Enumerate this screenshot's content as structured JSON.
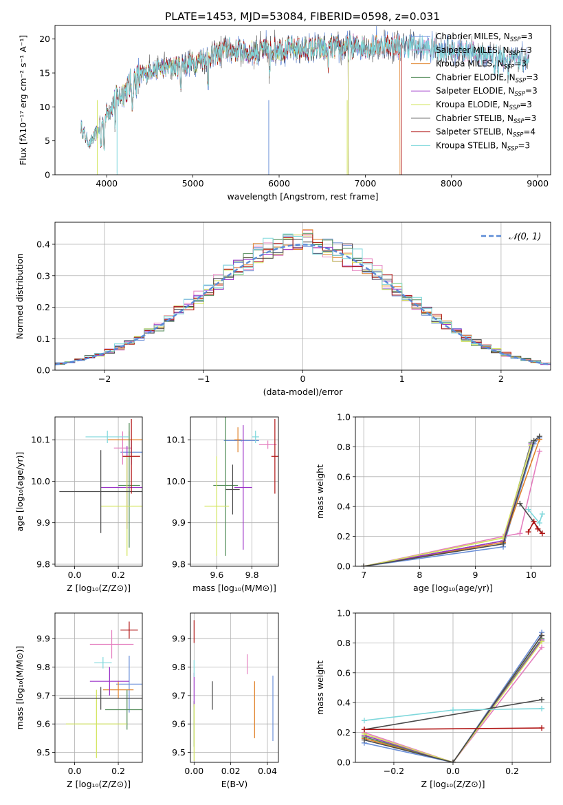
{
  "figure_title": "PLATE=1453, MJD=53084, FIBERID=0598, z=0.031",
  "colors": {
    "Chabrier MILES": "#6a8fd8",
    "Salpeter MILES": "#e57fbf",
    "Kroupa MILES": "#e0822a",
    "Chabrier ELODIE": "#4f8a55",
    "Salpeter ELODIE": "#9c33c8",
    "Kroupa ELODIE": "#d2e45a",
    "Chabrier STELIB": "#4a4a4a",
    "Salpeter STELIB": "#b01414",
    "Kroupa STELIB": "#7fd8dc"
  },
  "chart_data": [
    {
      "id": "spectrum",
      "type": "line",
      "xlabel": "wavelength [Angstrom, rest frame]",
      "ylabel": "Flux [fλ10⁻¹⁷ erg cm⁻² s⁻¹ A⁻¹]",
      "xlim": [
        3400,
        9150
      ],
      "ylim": [
        0,
        22
      ],
      "xticks": [
        4000,
        5000,
        6000,
        7000,
        8000,
        9000
      ],
      "yticks": [
        0,
        5,
        10,
        15,
        20
      ],
      "legend": "top-right",
      "series": [
        {
          "name": "Chabrier MILES, N<sub>SSP</sub>=3",
          "end": 8900
        },
        {
          "name": "Salpeter MILES, N<sub>SSP</sub>=3",
          "end": 8900
        },
        {
          "name": "Kroupa MILES, N<sub>SSP</sub>=3",
          "end": 7400
        },
        {
          "name": "Chabrier ELODIE, N<sub>SSP</sub>=3",
          "end": 6800
        },
        {
          "name": "Salpeter ELODIE, N<sub>SSP</sub>=3",
          "end": 6800
        },
        {
          "name": "Kroupa ELODIE, N<sub>SSP</sub>=3",
          "end": 6800
        },
        {
          "name": "Chabrier STELIB, N<sub>SSP</sub>=3",
          "end": 8900
        },
        {
          "name": "Salpeter STELIB, N<sub>SSP</sub>=4",
          "end": 7420
        },
        {
          "name": "Kroupa STELIB, N<sub>SSP</sub>=3",
          "end": 8900
        }
      ],
      "continuum": [
        [
          3700,
          7
        ],
        [
          3800,
          4.5
        ],
        [
          3900,
          6.5
        ],
        [
          4000,
          9
        ],
        [
          4100,
          11
        ],
        [
          4300,
          13.5
        ],
        [
          4500,
          15.5
        ],
        [
          4800,
          16
        ],
        [
          5000,
          16.5
        ],
        [
          5200,
          17.5
        ],
        [
          5400,
          18.5
        ],
        [
          5600,
          18
        ],
        [
          6000,
          18.5
        ],
        [
          6500,
          18.5
        ],
        [
          7000,
          19
        ],
        [
          7500,
          19
        ],
        [
          8000,
          18.3
        ],
        [
          8500,
          17.5
        ],
        [
          8900,
          16.8
        ]
      ],
      "absorption_lines": [
        [
          3933,
          0.55
        ],
        [
          3968,
          0.5
        ],
        [
          4102,
          0.7
        ],
        [
          4300,
          0.8
        ],
        [
          4861,
          0.85
        ],
        [
          5175,
          0.75
        ],
        [
          5890,
          0.8
        ],
        [
          6563,
          0.9
        ],
        [
          8500,
          0.9
        ],
        [
          8542,
          0.88
        ],
        [
          8662,
          0.9
        ]
      ],
      "sky_lines": [
        [
          5577,
          0.65
        ],
        [
          6300,
          0.75
        ],
        [
          4950,
          0.85
        ],
        [
          7700,
          0.9
        ]
      ]
    },
    {
      "id": "residuals",
      "type": "histogram",
      "xlabel": "(data-model)/error",
      "ylabel": "Normed distribution",
      "xlim": [
        -2.5,
        2.5
      ],
      "ylim": [
        0,
        0.47
      ],
      "xticks": [
        -2,
        -1,
        0,
        1,
        2
      ],
      "yticks": [
        0.0,
        0.1,
        0.2,
        0.3,
        0.4
      ],
      "grid": true,
      "bin_width": 0.1,
      "legend": "top-right",
      "reference_curve": {
        "name": "𝒩(0, 1)",
        "type": "normal",
        "mean": 0,
        "sigma": 1,
        "color": "#5b8ad6"
      }
    },
    {
      "id": "age-vs-Z",
      "type": "scatter",
      "xlabel": "Z [log₁₀(Z/Z⊙)]",
      "ylabel": "age  [log₁₀(age/yr)]",
      "xlim": [
        -0.09,
        0.31
      ],
      "ylim": [
        9.795,
        10.155
      ],
      "xticks": [
        0.0,
        0.2
      ],
      "yticks": [
        9.8,
        9.9,
        10.0,
        10.1
      ],
      "grid": true,
      "points": [
        {
          "series": "Chabrier MILES",
          "x": 0.26,
          "y": 10.07,
          "xerr": 0.05,
          "yerr": 0.03
        },
        {
          "series": "Salpeter MILES",
          "x": 0.22,
          "y": 10.08,
          "xerr": 0.04,
          "yerr": 0.04
        },
        {
          "series": "Kroupa MILES",
          "x": 0.25,
          "y": 10.1,
          "xerr": 0.1,
          "yerr": 0.02
        },
        {
          "series": "Chabrier ELODIE",
          "x": 0.25,
          "y": 9.99,
          "xerr": 0.05,
          "yerr": 0.15
        },
        {
          "series": "Salpeter ELODIE",
          "x": 0.24,
          "y": 9.985,
          "xerr": 0.12,
          "yerr": 0.1
        },
        {
          "series": "Kroupa ELODIE",
          "x": 0.24,
          "y": 9.94,
          "xerr": 0.12,
          "yerr": 0.12
        },
        {
          "series": "Chabrier STELIB",
          "x": 0.12,
          "y": 9.975,
          "xerr": 0.19,
          "yerr": 0.1
        },
        {
          "series": "Salpeter STELIB",
          "x": 0.26,
          "y": 10.06,
          "xerr": 0.04,
          "yerr": 0.09
        },
        {
          "series": "Kroupa STELIB",
          "x": 0.15,
          "y": 10.107,
          "xerr": 0.1,
          "yerr": 0.015
        }
      ]
    },
    {
      "id": "age-vs-mass",
      "type": "scatter",
      "xlabel": "mass [log₁₀(M/M⊙)]",
      "ylabel": "",
      "xlim": [
        9.45,
        9.95
      ],
      "ylim": [
        9.795,
        10.155
      ],
      "xticks": [
        9.6,
        9.8
      ],
      "yticks": [
        9.8,
        9.9,
        10.0,
        10.1
      ],
      "grid": true,
      "points": [
        {
          "series": "Chabrier MILES",
          "x": 9.74,
          "y": 10.098,
          "xerr": 0.1,
          "yerr": 0.002
        },
        {
          "series": "Salpeter MILES",
          "x": 9.89,
          "y": 10.088,
          "xerr": 0.05,
          "yerr": 0.01
        },
        {
          "series": "Kroupa MILES",
          "x": 9.72,
          "y": 10.1,
          "xerr": 0.02,
          "yerr": 0.03
        },
        {
          "series": "Chabrier ELODIE",
          "x": 9.65,
          "y": 9.99,
          "xerr": 0.07,
          "yerr": 0.17
        },
        {
          "series": "Salpeter ELODIE",
          "x": 9.75,
          "y": 9.985,
          "xerr": 0.05,
          "yerr": 0.15
        },
        {
          "series": "Kroupa ELODIE",
          "x": 9.6,
          "y": 9.94,
          "xerr": 0.07,
          "yerr": 0.12
        },
        {
          "series": "Chabrier STELIB",
          "x": 9.69,
          "y": 9.98,
          "xerr": 0.04,
          "yerr": 0.06
        },
        {
          "series": "Salpeter STELIB",
          "x": 9.93,
          "y": 10.06,
          "xerr": 0.02,
          "yerr": 0.09
        },
        {
          "series": "Kroupa STELIB",
          "x": 9.82,
          "y": 10.107,
          "xerr": 0.02,
          "yerr": 0.015
        }
      ]
    },
    {
      "id": "mass-weight-vs-age",
      "type": "line",
      "xlabel": "age  [log₁₀(age/yr)]",
      "ylabel": "mass weight",
      "xlim": [
        6.85,
        10.35
      ],
      "ylim": [
        0,
        1
      ],
      "xticks": [
        7,
        8,
        9,
        10
      ],
      "yticks": [
        0.0,
        0.2,
        0.4,
        0.6,
        0.8,
        1.0
      ],
      "grid": true,
      "series": [
        {
          "name": "Chabrier MILES",
          "x": [
            7.0,
            9.5,
            10.05,
            10.15
          ],
          "y": [
            0.0,
            0.13,
            0.82,
            0.86
          ]
        },
        {
          "name": "Salpeter MILES",
          "x": [
            7.0,
            9.5,
            9.8,
            10.15
          ],
          "y": [
            0.0,
            0.2,
            0.22,
            0.77
          ]
        },
        {
          "name": "Kroupa MILES",
          "x": [
            7.0,
            9.5,
            10.15
          ],
          "y": [
            0.0,
            0.16,
            0.85
          ]
        },
        {
          "name": "Chabrier ELODIE",
          "x": [
            7.0,
            9.5,
            10.0
          ],
          "y": [
            0.0,
            0.17,
            0.83
          ]
        },
        {
          "name": "Salpeter ELODIE",
          "x": [
            7.0,
            9.5,
            10.0
          ],
          "y": [
            0.0,
            0.17,
            0.82
          ]
        },
        {
          "name": "Kroupa ELODIE",
          "x": [
            7.0,
            9.5,
            10.0
          ],
          "y": [
            0.0,
            0.19,
            0.81
          ]
        },
        {
          "name": "Chabrier STELIB",
          "x": [
            7.0,
            9.5,
            10.05,
            10.15
          ],
          "y": [
            0.0,
            0.15,
            0.84,
            0.87
          ]
        },
        {
          "name": "Chabrier STELIB",
          "x": [
            9.8,
            10.2
          ],
          "y": [
            0.42,
            0.22
          ]
        },
        {
          "name": "Salpeter STELIB",
          "x": [
            9.95,
            10.05,
            10.12,
            10.2
          ],
          "y": [
            0.23,
            0.3,
            0.25,
            0.22
          ]
        },
        {
          "name": "Kroupa STELIB",
          "x": [
            9.95,
            10.15,
            10.2
          ],
          "y": [
            0.38,
            0.29,
            0.35
          ]
        }
      ]
    },
    {
      "id": "mass-vs-Z",
      "type": "scatter",
      "xlabel": "Z [log₁₀(Z/Z⊙)]",
      "ylabel": "mass [log₁₀(M/M⊙)]",
      "xlim": [
        -0.09,
        0.31
      ],
      "ylim": [
        9.465,
        9.99
      ],
      "xticks": [
        0.0,
        0.2
      ],
      "yticks": [
        9.5,
        9.6,
        9.7,
        9.8,
        9.9
      ],
      "grid": true,
      "points": [
        {
          "series": "Chabrier MILES",
          "x": 0.25,
          "y": 9.74,
          "xerr": 0.06,
          "yerr": 0.1
        },
        {
          "series": "Salpeter MILES",
          "x": 0.17,
          "y": 9.88,
          "xerr": 0.1,
          "yerr": 0.05
        },
        {
          "series": "Kroupa MILES",
          "x": 0.2,
          "y": 9.72,
          "xerr": 0.07,
          "yerr": 0.03
        },
        {
          "series": "Chabrier ELODIE",
          "x": 0.24,
          "y": 9.65,
          "xerr": 0.1,
          "yerr": 0.07
        },
        {
          "series": "Salpeter ELODIE",
          "x": 0.16,
          "y": 9.75,
          "xerr": 0.09,
          "yerr": 0.05
        },
        {
          "series": "Kroupa ELODIE",
          "x": 0.1,
          "y": 9.6,
          "xerr": 0.14,
          "yerr": 0.12
        },
        {
          "series": "Chabrier STELIB",
          "x": 0.12,
          "y": 9.69,
          "xerr": 0.19,
          "yerr": 0.04
        },
        {
          "series": "Salpeter STELIB",
          "x": 0.25,
          "y": 9.93,
          "xerr": 0.04,
          "yerr": 0.03
        },
        {
          "series": "Kroupa STELIB",
          "x": 0.13,
          "y": 9.815,
          "xerr": 0.04,
          "yerr": 0.02
        }
      ]
    },
    {
      "id": "mass-vs-EBV",
      "type": "scatter",
      "xlabel": "E(B-V)",
      "ylabel": "",
      "xlim": [
        -0.002,
        0.046
      ],
      "ylim": [
        9.465,
        9.99
      ],
      "xticks": [
        0.0,
        0.02,
        0.04
      ],
      "yticks": [
        9.5,
        9.6,
        9.7,
        9.8,
        9.9
      ],
      "grid": true,
      "points": [
        {
          "series": "Chabrier MILES",
          "x": 0.043,
          "y": 9.655,
          "xerr": 0,
          "yerr": 0.115
        },
        {
          "series": "Salpeter MILES",
          "x": 0.029,
          "y": 9.81,
          "xerr": 0,
          "yerr": 0.035
        },
        {
          "series": "Kroupa MILES",
          "x": 0.033,
          "y": 9.65,
          "xerr": 0,
          "yerr": 0.1
        },
        {
          "series": "Chabrier ELODIE",
          "x": 0.0,
          "y": 9.6,
          "xerr": 0,
          "yerr": 0.08
        },
        {
          "series": "Salpeter ELODIE",
          "x": 0.0,
          "y": 9.72,
          "xerr": 0,
          "yerr": 0.06
        },
        {
          "series": "Kroupa ELODIE",
          "x": 0.0,
          "y": 9.57,
          "xerr": 0,
          "yerr": 0.1
        },
        {
          "series": "Chabrier STELIB",
          "x": 0.01,
          "y": 9.7,
          "xerr": 0,
          "yerr": 0.05
        },
        {
          "series": "Salpeter STELIB",
          "x": 0.0,
          "y": 9.925,
          "xerr": 0,
          "yerr": 0.04
        },
        {
          "series": "Kroupa STELIB",
          "x": 0.0,
          "y": 9.795,
          "xerr": 0,
          "yerr": 0.03
        }
      ]
    },
    {
      "id": "mass-weight-vs-Z",
      "type": "line",
      "xlabel": "Z [log₁₀(Z/Z⊙)]",
      "ylabel": "mass weight",
      "xlim": [
        -0.33,
        0.33
      ],
      "ylim": [
        0,
        1
      ],
      "xticks": [
        -0.2,
        0.0,
        0.2
      ],
      "yticks": [
        0.0,
        0.2,
        0.4,
        0.6,
        0.8,
        1.0
      ],
      "grid": true,
      "series": [
        {
          "name": "Chabrier MILES",
          "x": [
            -0.3,
            0.0,
            0.3
          ],
          "y": [
            0.13,
            0.0,
            0.87
          ]
        },
        {
          "name": "Salpeter MILES",
          "x": [
            -0.3,
            0.0,
            0.3
          ],
          "y": [
            0.2,
            0.0,
            0.77
          ]
        },
        {
          "name": "Kroupa MILES",
          "x": [
            -0.3,
            0.0,
            0.3
          ],
          "y": [
            0.16,
            0.0,
            0.85
          ]
        },
        {
          "name": "Chabrier ELODIE",
          "x": [
            -0.3,
            0.0,
            0.3
          ],
          "y": [
            0.17,
            0.0,
            0.83
          ]
        },
        {
          "name": "Salpeter ELODIE",
          "x": [
            -0.3,
            0.0,
            0.3
          ],
          "y": [
            0.18,
            0.0,
            0.82
          ]
        },
        {
          "name": "Kroupa ELODIE",
          "x": [
            -0.3,
            0.0,
            0.3
          ],
          "y": [
            0.19,
            0.0,
            0.81
          ]
        },
        {
          "name": "Chabrier STELIB",
          "x": [
            -0.3,
            0.0,
            0.3
          ],
          "y": [
            0.15,
            0.0,
            0.85
          ]
        },
        {
          "name": "Chabrier STELIB",
          "x": [
            -0.3,
            0.3
          ],
          "y": [
            0.22,
            0.42
          ]
        },
        {
          "name": "Salpeter STELIB",
          "x": [
            -0.3,
            0.3
          ],
          "y": [
            0.22,
            0.23
          ]
        },
        {
          "name": "Kroupa STELIB",
          "x": [
            -0.3,
            0.0,
            0.3
          ],
          "y": [
            0.28,
            0.35,
            0.36
          ]
        }
      ]
    }
  ]
}
